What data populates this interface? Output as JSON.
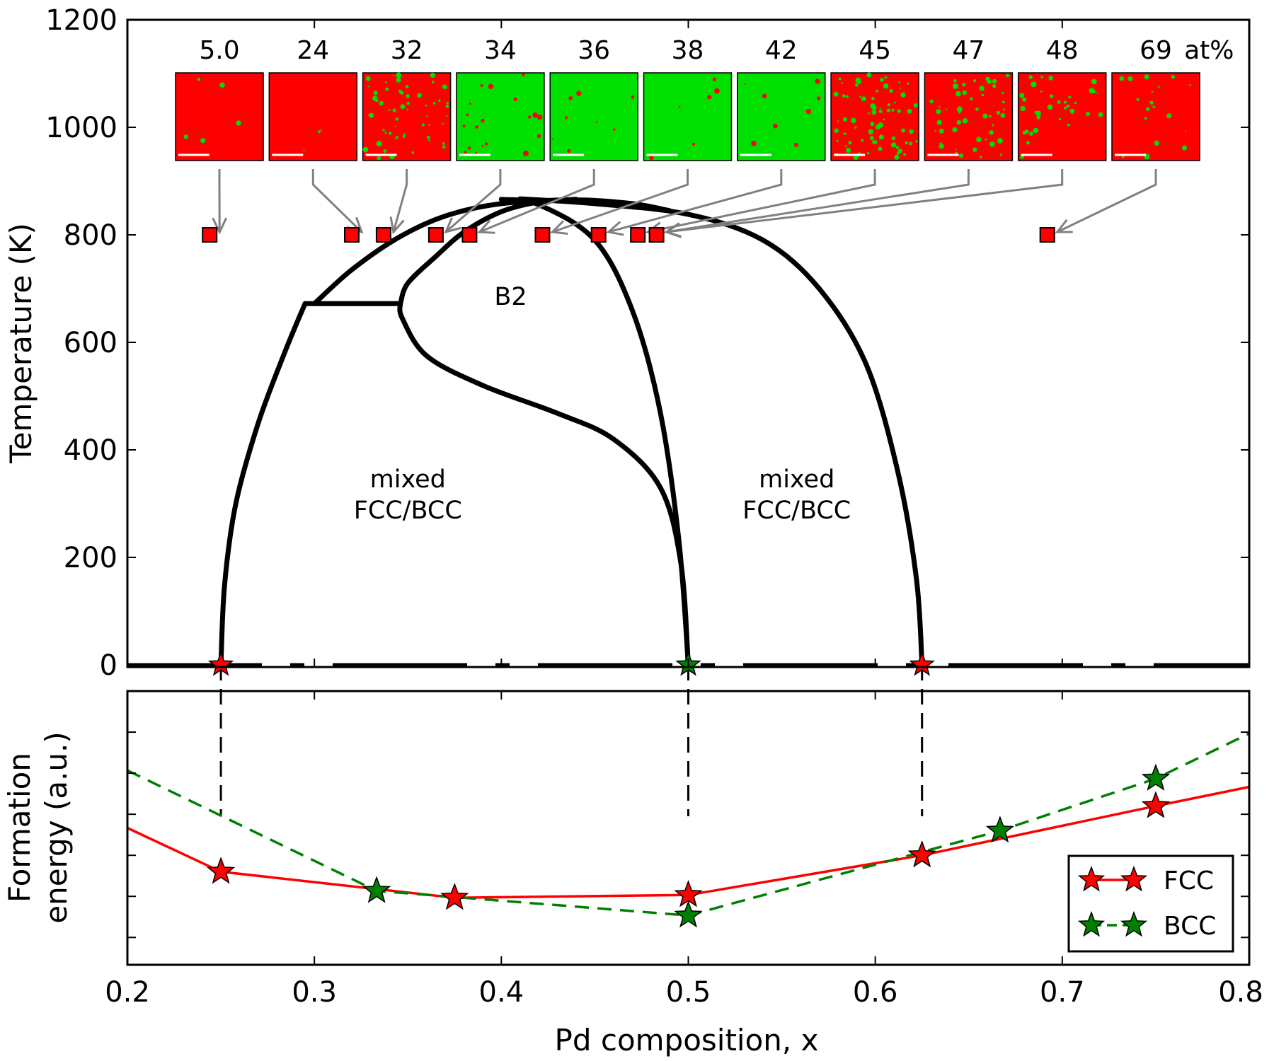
{
  "chart_data": [
    {
      "type": "line",
      "panel": "phase-diagram",
      "ylabel": "Temperature (K)",
      "xlim": [
        0.2,
        0.8
      ],
      "ylim": [
        0,
        1200
      ],
      "xticks": [
        0.2,
        0.3,
        0.4,
        0.5,
        0.6,
        0.7,
        0.8
      ],
      "yticks": [
        0,
        200,
        400,
        600,
        800,
        1000,
        1200
      ],
      "grid": false,
      "boundaries": [
        {
          "name": "left-solvus",
          "points": [
            [
              0.25,
              0
            ],
            [
              0.252,
              150
            ],
            [
              0.258,
              300
            ],
            [
              0.27,
              450
            ],
            [
              0.284,
              580
            ],
            [
              0.295,
              672
            ]
          ]
        },
        {
          "name": "eutectoid-line",
          "points": [
            [
              0.295,
              672
            ],
            [
              0.346,
              672
            ]
          ]
        },
        {
          "name": "left-dome",
          "points": [
            [
              0.3,
              672
            ],
            [
              0.32,
              735
            ],
            [
              0.345,
              795
            ],
            [
              0.37,
              835
            ],
            [
              0.4,
              858
            ],
            [
              0.44,
              865
            ],
            [
              0.47,
              858
            ],
            [
              0.49,
              845
            ]
          ]
        },
        {
          "name": "left-b2-boundary",
          "points": [
            [
              0.346,
              672
            ],
            [
              0.35,
              710
            ],
            [
              0.365,
              760
            ],
            [
              0.38,
              805
            ],
            [
              0.4,
              843
            ],
            [
              0.42,
              861
            ],
            [
              0.44,
              866
            ]
          ]
        },
        {
          "name": "s-curve",
          "points": [
            [
              0.346,
              672
            ],
            [
              0.347,
              645
            ],
            [
              0.36,
              575
            ],
            [
              0.39,
              520
            ],
            [
              0.43,
              468
            ],
            [
              0.46,
              420
            ],
            [
              0.485,
              330
            ],
            [
              0.496,
              190
            ],
            [
              0.5,
              0
            ]
          ]
        },
        {
          "name": "b2-right-boundary",
          "points": [
            [
              0.4,
              866
            ],
            [
              0.42,
              856
            ],
            [
              0.45,
              790
            ],
            [
              0.47,
              660
            ],
            [
              0.485,
              470
            ],
            [
              0.495,
              230
            ],
            [
              0.5,
              0
            ]
          ]
        },
        {
          "name": "right-solvus",
          "points": [
            [
              0.41,
              867
            ],
            [
              0.45,
              858
            ],
            [
              0.5,
              838
            ],
            [
              0.54,
              790
            ],
            [
              0.57,
              700
            ],
            [
              0.595,
              560
            ],
            [
              0.612,
              360
            ],
            [
              0.622,
              160
            ],
            [
              0.625,
              0
            ]
          ]
        }
      ],
      "zero_line": {
        "y": 0,
        "style": "dashed"
      },
      "zero_markers": [
        {
          "x": 0.25,
          "y": 0,
          "color": "#ff0000"
        },
        {
          "x": 0.5,
          "y": 0,
          "color": "#008000"
        },
        {
          "x": 0.625,
          "y": 0,
          "color": "#ff0000"
        }
      ],
      "sample_points": {
        "temperature": 800,
        "color": "#ff0000",
        "x": [
          0.244,
          0.32,
          0.337,
          0.365,
          0.383,
          0.422,
          0.452,
          0.473,
          0.483,
          0.692
        ]
      },
      "region_labels": [
        {
          "lines": [
            "B2"
          ],
          "x": 0.405,
          "y": 670
        },
        {
          "lines": [
            "mixed",
            "FCC/BCC"
          ],
          "x": 0.35,
          "y": 330
        },
        {
          "lines": [
            "mixed",
            "FCC/BCC"
          ],
          "x": 0.558,
          "y": 330
        }
      ],
      "insets": {
        "unit_label": "at%",
        "labels": [
          "5.0",
          "24",
          "32",
          "34",
          "36",
          "38",
          "42",
          "45",
          "47",
          "48",
          "69"
        ],
        "dominant_colors": [
          "#ff0000",
          "#ff0000",
          "#ff0000",
          "#00e000",
          "#00e000",
          "#00e000",
          "#00e000",
          "#ff0000",
          "#ff0000",
          "#ff0000",
          "#ff0000"
        ],
        "target_sample_index": [
          0,
          1,
          2,
          3,
          4,
          5,
          6,
          7,
          8,
          8,
          9
        ]
      }
    },
    {
      "type": "line",
      "panel": "formation-energy",
      "xlabel": "Pd composition, x",
      "ylabel_lines": [
        "Formation",
        "energy (a.u.)"
      ],
      "xlim": [
        0.2,
        0.8
      ],
      "ylim": [
        0,
        1
      ],
      "xticks": [
        0.2,
        0.3,
        0.4,
        0.5,
        0.6,
        0.7,
        0.8
      ],
      "xtick_labels": [
        "0.2",
        "0.3",
        "0.4",
        "0.5",
        "0.6",
        "0.7",
        "0.8"
      ],
      "yticks_unlabeled": [
        0.1,
        0.25,
        0.4,
        0.55,
        0.7,
        0.85
      ],
      "series": [
        {
          "name": "FCC",
          "color": "#ff0000",
          "line_style": "solid",
          "x": [
            0.2,
            0.25,
            0.375,
            0.5,
            0.625,
            0.75,
            0.8
          ],
          "y": [
            0.5,
            0.34,
            0.245,
            0.255,
            0.4,
            0.58,
            0.65
          ],
          "markers_x": [
            0.25,
            0.375,
            0.5,
            0.625,
            0.75
          ],
          "markers_y": [
            0.34,
            0.245,
            0.255,
            0.4,
            0.58
          ]
        },
        {
          "name": "BCC",
          "color": "#008000",
          "line_style": "dashed",
          "x": [
            0.2,
            0.3333,
            0.5,
            0.6667,
            0.75,
            0.8
          ],
          "y": [
            0.71,
            0.27,
            0.18,
            0.49,
            0.68,
            0.845
          ],
          "markers_x": [
            0.3333,
            0.5,
            0.6667,
            0.75
          ],
          "markers_y": [
            0.27,
            0.18,
            0.49,
            0.68
          ]
        }
      ],
      "vertical_guides": [
        0.25,
        0.5,
        0.625
      ],
      "legend": {
        "position": "lower-right",
        "entries": [
          "FCC",
          "BCC"
        ]
      }
    }
  ]
}
